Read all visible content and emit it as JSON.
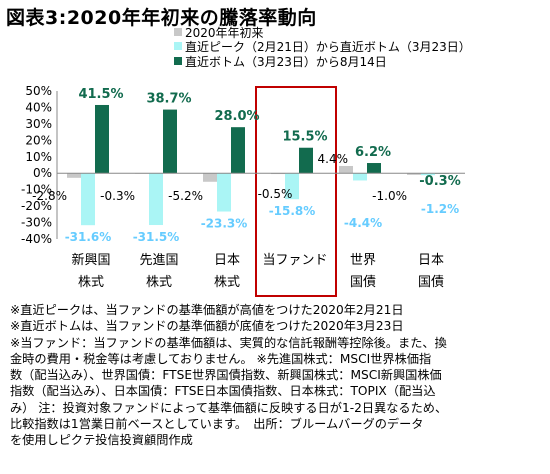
{
  "title": "図表3:2020年年初来の騰落率動向",
  "legend": [
    {
      "label": "2020年年初来",
      "color": "#c8c8c8"
    },
    {
      "label": "直近ピーク（2月21日）から直近ボトム（3月23日）",
      "color": "#aaf5f5"
    },
    {
      "label": "直近ボトム（3月23日）から8月14日",
      "color": "#126b4e"
    }
  ],
  "chart_data": {
    "type": "bar",
    "title": "",
    "xlabel": "",
    "ylabel": "",
    "ylim": [
      -40,
      50
    ],
    "yticks": [
      "50%",
      "40%",
      "30%",
      "20%",
      "10%",
      "0%",
      "-10%",
      "-20%",
      "-30%",
      "-40%"
    ],
    "categories": [
      [
        "新興国",
        "株式"
      ],
      [
        "先進国",
        "株式"
      ],
      [
        "日本",
        "株式"
      ],
      [
        "当ファンド"
      ],
      [
        "世界",
        "国債"
      ],
      [
        "日本",
        "国債"
      ]
    ],
    "highlight_category": 3,
    "series": [
      {
        "name": "2020年年初来",
        "color": "#c8c8c8",
        "values": [
          -2.8,
          -0.3,
          -5.2,
          -0.5,
          4.4,
          -1.0
        ],
        "labels": [
          "-2.8%",
          "-0.3%",
          "-5.2%",
          "-0.5%",
          "4.4%",
          "-1.0%"
        ]
      },
      {
        "name": "直近ピーク（2月21日）から直近ボトム（3月23日）",
        "color": "#aaf5f5",
        "label_color": "#66ccff",
        "values": [
          -31.6,
          -31.5,
          -23.3,
          -15.8,
          -4.4,
          -1.2
        ],
        "labels": [
          "-31.6%",
          "-31.5%",
          "-23.3%",
          "-15.8%",
          "-4.4%",
          "-1.2%"
        ]
      },
      {
        "name": "直近ボトム（3月23日）から8月14日",
        "color": "#126b4e",
        "label_color": "#126b4e",
        "values": [
          41.5,
          38.7,
          28.0,
          15.5,
          6.2,
          -0.3
        ],
        "labels": [
          "41.5%",
          "38.7%",
          "28.0%",
          "15.5%",
          "6.2%",
          "-0.3%"
        ]
      }
    ]
  },
  "notes": [
    "※直近ピークは、当ファンドの基準価額が高値をつけた2020年2月21日",
    "※直近ボトムは、当ファンドの基準価額が底値をつけた2020年3月23日",
    "※当ファンド：当ファンドの基準価額は、実質的な信託報酬等控除後。また、換",
    "金時の費用・税金等は考慮しておりません。 ※先進国株式：MSCI世界株価指",
    "数（配当込み）、世界国債：FTSE世界国債指数、新興国株式：MSCI新興国株価",
    "指数（配当込み）、日本国債：FTSE日本国債指数、日本株式：TOPIX（配当込",
    "み） 注：投資対象ファンドによって基準価額に反映する日が1-2日異なるため、",
    "比較指数は1営業日前ベースとしています。　出所：ブルームバーグのデータ",
    "を使用しピクテ投信投資顧問作成"
  ]
}
